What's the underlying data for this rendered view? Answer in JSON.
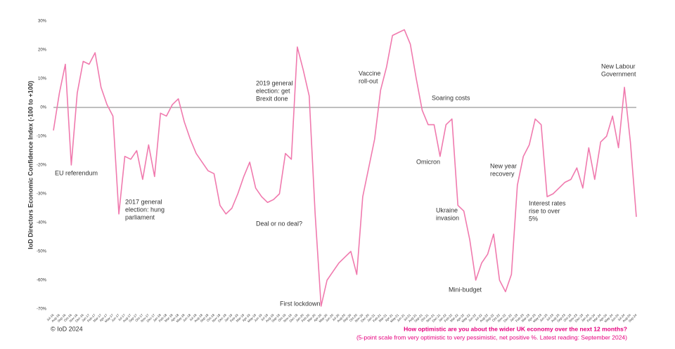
{
  "chart_data": {
    "type": "line",
    "y_label": "IoD Directors Economic Confidence Index (-100 to +100)",
    "categories": [
      "Jul-16",
      "Aug-16",
      "Sep-16",
      "Oct-16",
      "Nov-16",
      "Dec-16",
      "Jan-17",
      "Feb-17",
      "Mar-17",
      "Apr-17",
      "May-17",
      "Jun-17",
      "Jul-17",
      "Aug-17",
      "Sep-17",
      "Oct-17",
      "Nov-17",
      "Dec-17",
      "Jan-18",
      "Feb-18",
      "Mar-18",
      "Apr-18",
      "May-18",
      "Jun-18",
      "Jul-18",
      "Aug-18",
      "Sep-18",
      "Oct-18",
      "Nov-18",
      "Dec-18",
      "Jan-19",
      "Feb-19",
      "Mar-19",
      "Apr-19",
      "May-19",
      "Jun-19",
      "Jul-19",
      "Aug-19",
      "Sep-19",
      "Oct-19",
      "Nov-19",
      "Dec-19",
      "Jan-20",
      "Feb-20",
      "Mar-20",
      "Apr-20",
      "May-20",
      "Jun-20",
      "Jul-20",
      "Aug-20",
      "Sep-20",
      "Oct-20",
      "Nov-20",
      "Dec-20",
      "Jan-21",
      "Feb-21",
      "Mar-21",
      "Apr-21",
      "May-21",
      "Jun-21",
      "Jul-21",
      "Aug-21",
      "Sep-21",
      "Oct-21",
      "Nov-21",
      "Dec-21",
      "Jan-22",
      "Feb-22",
      "Mar-22",
      "Apr-22",
      "May-22",
      "Jun-22",
      "Jul-22",
      "Aug-22",
      "Sep-22",
      "Oct-22",
      "Nov-22",
      "Dec-22",
      "Jan-23",
      "Feb-23",
      "Mar-23",
      "Apr-23",
      "May-23",
      "Jun-23",
      "Jul-23",
      "Aug-23",
      "Sep-23",
      "Oct-23",
      "Nov-23",
      "Dec-23",
      "Jan-24",
      "Feb-24",
      "Mar-24",
      "Apr-24",
      "May-24",
      "Jun-24",
      "Jul-24",
      "Aug-24",
      "Sep-24"
    ],
    "values": [
      -8,
      5,
      15,
      -20,
      5,
      16,
      15,
      19,
      7,
      1,
      -3,
      -37,
      -17,
      -18,
      -15,
      -25,
      -13,
      -24,
      -2,
      -3,
      1,
      3,
      -5,
      -11,
      -16,
      -19,
      -22,
      -23,
      -34,
      -37,
      -35,
      -30,
      -24,
      -19,
      -28,
      -31,
      -33,
      -32,
      -30,
      -16,
      -18,
      21,
      13,
      4,
      -37,
      -69,
      -60,
      -57,
      -54,
      -52,
      -50,
      -58,
      -31,
      -21,
      -11,
      6,
      14,
      25,
      26,
      27,
      22,
      10,
      -1,
      -6,
      -6,
      -17,
      -6,
      -4,
      -34,
      -36,
      -46,
      -60,
      -54,
      -51,
      -44,
      -60,
      -64,
      -58,
      -27,
      -17,
      -13,
      -4,
      -6,
      -31,
      -30,
      -28,
      -26,
      -25,
      -21,
      -28,
      -14,
      -25,
      -12,
      -10,
      -3,
      -14,
      7,
      -12,
      -38
    ],
    "color": "#f07aae",
    "ylim": [
      -70,
      30
    ],
    "yticks": [
      {
        "value": -70,
        "label": "-70%"
      },
      {
        "value": -60,
        "label": "-60%"
      },
      {
        "value": -50,
        "label": "-50%"
      },
      {
        "value": -40,
        "label": "-40%"
      },
      {
        "value": -30,
        "label": "-30%"
      },
      {
        "value": -20,
        "label": "-20%"
      },
      {
        "value": -10,
        "label": "-10%"
      },
      {
        "value": 0,
        "label": "0%"
      },
      {
        "value": 10,
        "label": "10%"
      },
      {
        "value": 20,
        "label": "20%"
      },
      {
        "value": 30,
        "label": "30%"
      }
    ],
    "annotations": [
      [
        "EU referendum"
      ],
      [
        "2017 general",
        "election: hung",
        "parliament"
      ],
      [
        "2019 general",
        "election: get",
        "Brexit done"
      ],
      [
        "Deal or no deal?"
      ],
      [
        "First lockdown"
      ],
      [
        "Vaccine",
        "roll-out"
      ],
      [
        "Soaring costs"
      ],
      [
        "Omicron"
      ],
      [
        "Ukraine",
        "invasion"
      ],
      [
        "Mini-budget"
      ],
      [
        "New year",
        "recovery"
      ],
      [
        "Interest rates",
        "rise to over",
        "5%"
      ],
      [
        "New Labour",
        "Government"
      ]
    ],
    "source": "© IoD 2024",
    "question": "How optimistic are you about the wider UK economy over the next 12 months?",
    "note": "(5-point scale from very optimistic to very pessimistic, net positive %. Latest reading: September 2024)"
  }
}
